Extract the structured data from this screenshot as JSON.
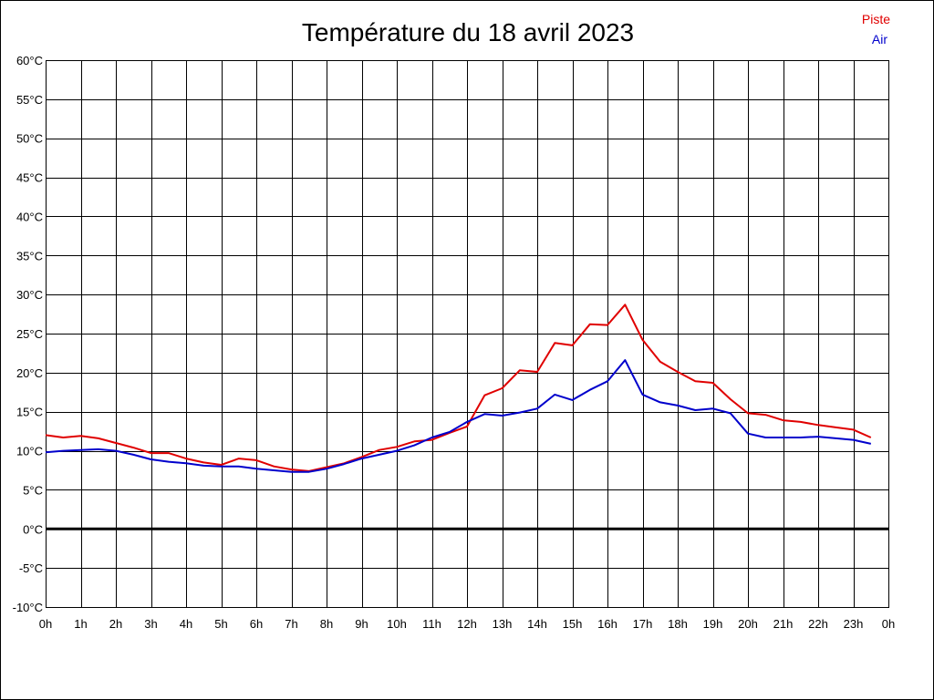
{
  "chart_data": {
    "type": "line",
    "title": "Température du 18 avril 2023",
    "xlabel": "",
    "ylabel": "",
    "ylim": [
      -10,
      60
    ],
    "xlim": [
      0,
      24
    ],
    "grid": true,
    "zero_line": true,
    "legend_placement": "top-right",
    "y_ticks": [
      -10,
      -5,
      0,
      5,
      10,
      15,
      20,
      25,
      30,
      35,
      40,
      45,
      50,
      55,
      60
    ],
    "y_tick_labels": [
      "-10°C",
      "-5°C",
      "0°C",
      "5°C",
      "10°C",
      "15°C",
      "20°C",
      "25°C",
      "30°C",
      "35°C",
      "40°C",
      "45°C",
      "50°C",
      "55°C",
      "60°C"
    ],
    "x_ticks": [
      0,
      1,
      2,
      3,
      4,
      5,
      6,
      7,
      8,
      9,
      10,
      11,
      12,
      13,
      14,
      15,
      16,
      17,
      18,
      19,
      20,
      21,
      22,
      23,
      24
    ],
    "x_tick_labels": [
      "0h",
      "1h",
      "2h",
      "3h",
      "4h",
      "5h",
      "6h",
      "7h",
      "8h",
      "9h",
      "10h",
      "11h",
      "12h",
      "13h",
      "14h",
      "15h",
      "16h",
      "17h",
      "18h",
      "19h",
      "20h",
      "21h",
      "22h",
      "23h",
      "0h"
    ],
    "x": [
      0,
      0.5,
      1,
      1.5,
      2,
      2.5,
      3,
      3.5,
      4,
      4.5,
      5,
      5.5,
      6,
      6.5,
      7,
      7.5,
      8,
      8.5,
      9,
      9.5,
      10,
      10.5,
      11,
      11.5,
      12,
      12.5,
      13,
      13.5,
      14,
      14.5,
      15,
      15.5,
      16,
      16.5,
      17,
      17.5,
      18,
      18.5,
      19,
      19.5,
      20,
      20.5,
      21,
      21.5,
      22,
      22.5,
      23,
      23.5
    ],
    "series": [
      {
        "name": "Piste",
        "color": "#e00000",
        "values": [
          12.0,
          11.7,
          11.9,
          11.6,
          11.0,
          10.4,
          9.7,
          9.7,
          9.0,
          8.5,
          8.2,
          9.0,
          8.8,
          8.0,
          7.6,
          7.4,
          7.9,
          8.4,
          9.2,
          10.1,
          10.5,
          11.2,
          11.4,
          12.3,
          13.1,
          17.1,
          18.0,
          20.3,
          20.1,
          23.8,
          23.5,
          26.2,
          26.1,
          28.7,
          24.2,
          21.4,
          20.1,
          18.9,
          18.7,
          16.6,
          14.8,
          14.6,
          13.9,
          13.7,
          13.3,
          13.0,
          12.7,
          11.7
        ]
      },
      {
        "name": "Air",
        "color": "#0000cc",
        "values": [
          9.8,
          10.0,
          10.1,
          10.2,
          10.0,
          9.5,
          8.9,
          8.6,
          8.4,
          8.1,
          8.0,
          8.0,
          7.7,
          7.5,
          7.3,
          7.3,
          7.7,
          8.3,
          9.0,
          9.5,
          10.0,
          10.7,
          11.7,
          12.4,
          13.7,
          14.7,
          14.5,
          14.9,
          15.4,
          17.2,
          16.5,
          17.8,
          18.9,
          21.6,
          17.2,
          16.2,
          15.8,
          15.2,
          15.4,
          14.8,
          12.2,
          11.7,
          11.7,
          11.7,
          11.8,
          11.6,
          11.4,
          10.9
        ]
      }
    ]
  }
}
